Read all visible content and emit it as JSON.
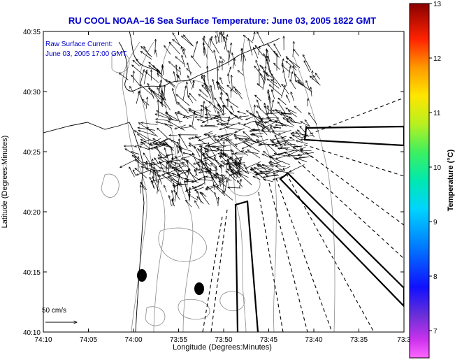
{
  "title": "RU COOL  NOAA–16  Sea Surface Temperature:  June 03, 2005 1822 GMT",
  "annotation": {
    "line1": "Raw Surface Current:",
    "line2": "June 03, 2005 17:00 GMT"
  },
  "scale_label": "50 cm/s",
  "axes": {
    "xlabel": "Longitude (Degrees:Minutes)",
    "ylabel": "Latitude (Degrees:Minutes)",
    "x_ticks": [
      "74:10",
      "74:05",
      "74:00",
      "73:55",
      "73:50",
      "73:45",
      "73:40",
      "73:35",
      "73:3"
    ],
    "y_ticks": [
      "40:35",
      "40:30",
      "40:25",
      "40:20",
      "40:15",
      "40:10"
    ]
  },
  "colorbar": {
    "label": "Temperature (°C)",
    "ticks": [
      "13",
      "12",
      "11",
      "10",
      "9",
      "8",
      "7"
    ],
    "range": [
      6.5,
      13
    ]
  },
  "colors": {
    "title": "#0000cc",
    "coast": "#000000",
    "contour": "#8a8a8a"
  },
  "icons": {
    "buoy": "filled-ellipse",
    "vector": "arrow"
  }
}
